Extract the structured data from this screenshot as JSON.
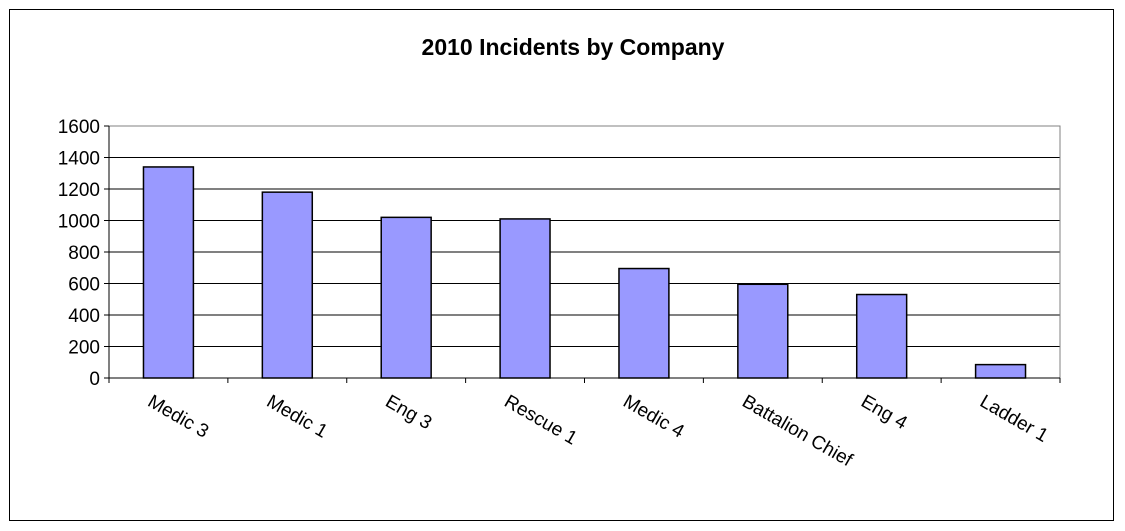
{
  "chart_data": {
    "type": "bar",
    "title": "2010 Incidents by Company",
    "xlabel": "",
    "ylabel": "",
    "categories": [
      "Medic 3",
      "Medic 1",
      "Eng 3",
      "Rescue 1",
      "Medic 4",
      "Battalion Chief",
      "Eng 4",
      "Ladder 1"
    ],
    "values": [
      1340,
      1180,
      1020,
      1010,
      695,
      595,
      530,
      85
    ],
    "ylim": [
      0,
      1600
    ],
    "yticks": [
      "0",
      "200",
      "400",
      "600",
      "800",
      "1000",
      "1200",
      "1400",
      "1600"
    ],
    "grid": true,
    "legend": "none",
    "colors": {
      "bar_fill": "#9999ff",
      "bar_stroke": "#000000",
      "plot_border": "#808080",
      "gridline": "#000000"
    }
  }
}
